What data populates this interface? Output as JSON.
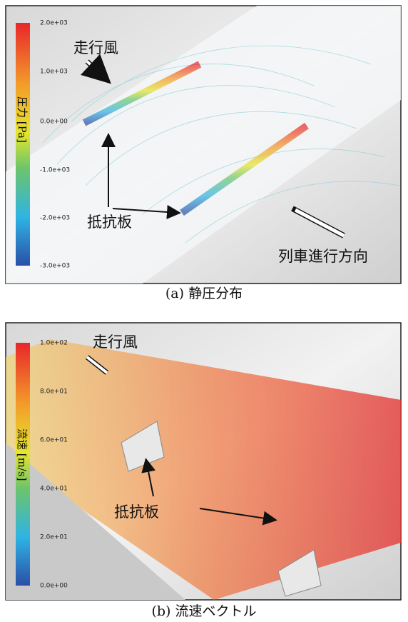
{
  "panels": [
    {
      "colorbar": {
        "label": "圧力 [Pa]",
        "ticks": [
          "2.0e+03",
          "1.0e+03",
          "0.0e+00",
          "-1.0e+03",
          "-2.0e+03",
          "-3.0e+03"
        ]
      },
      "annotations": [
        "走行風",
        "抵抗板",
        "列車進行方向"
      ],
      "caption": "(a) 静圧分布"
    },
    {
      "colorbar": {
        "label": "流速 [m/s]",
        "ticks": [
          "1.0e+02",
          "8.0e+01",
          "6.0e+01",
          "4.0e+01",
          "2.0e+01",
          "0.0e+00"
        ]
      },
      "annotations": [
        "走行風",
        "抵抗板"
      ],
      "caption": "(b) 流速ベクトル"
    }
  ]
}
